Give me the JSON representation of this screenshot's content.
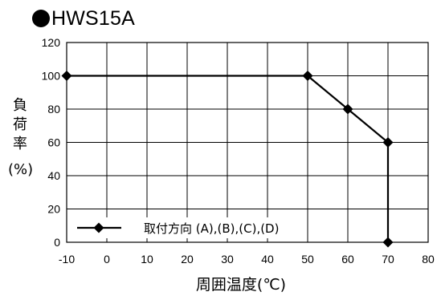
{
  "title": "HWS15A",
  "chart_data": {
    "type": "line",
    "title": "HWS15A",
    "xlabel": "周囲温度(℃)",
    "ylabel_chars": [
      "負",
      "荷",
      "率"
    ],
    "ylabel_unit": "(%)",
    "xlim": [
      -10,
      80
    ],
    "ylim": [
      0,
      120
    ],
    "xticks": [
      -10,
      0,
      10,
      20,
      30,
      40,
      50,
      60,
      70,
      80
    ],
    "yticks": [
      0,
      20,
      40,
      60,
      80,
      100,
      120
    ],
    "grid": true,
    "legend_position": "bottom-left",
    "series": [
      {
        "name": "取付方向 (A),(B),(C),(D)",
        "color": "#000000",
        "marker": "diamond",
        "x": [
          -10,
          50,
          60,
          70,
          70
        ],
        "y": [
          100,
          100,
          80,
          60,
          0
        ]
      }
    ]
  }
}
